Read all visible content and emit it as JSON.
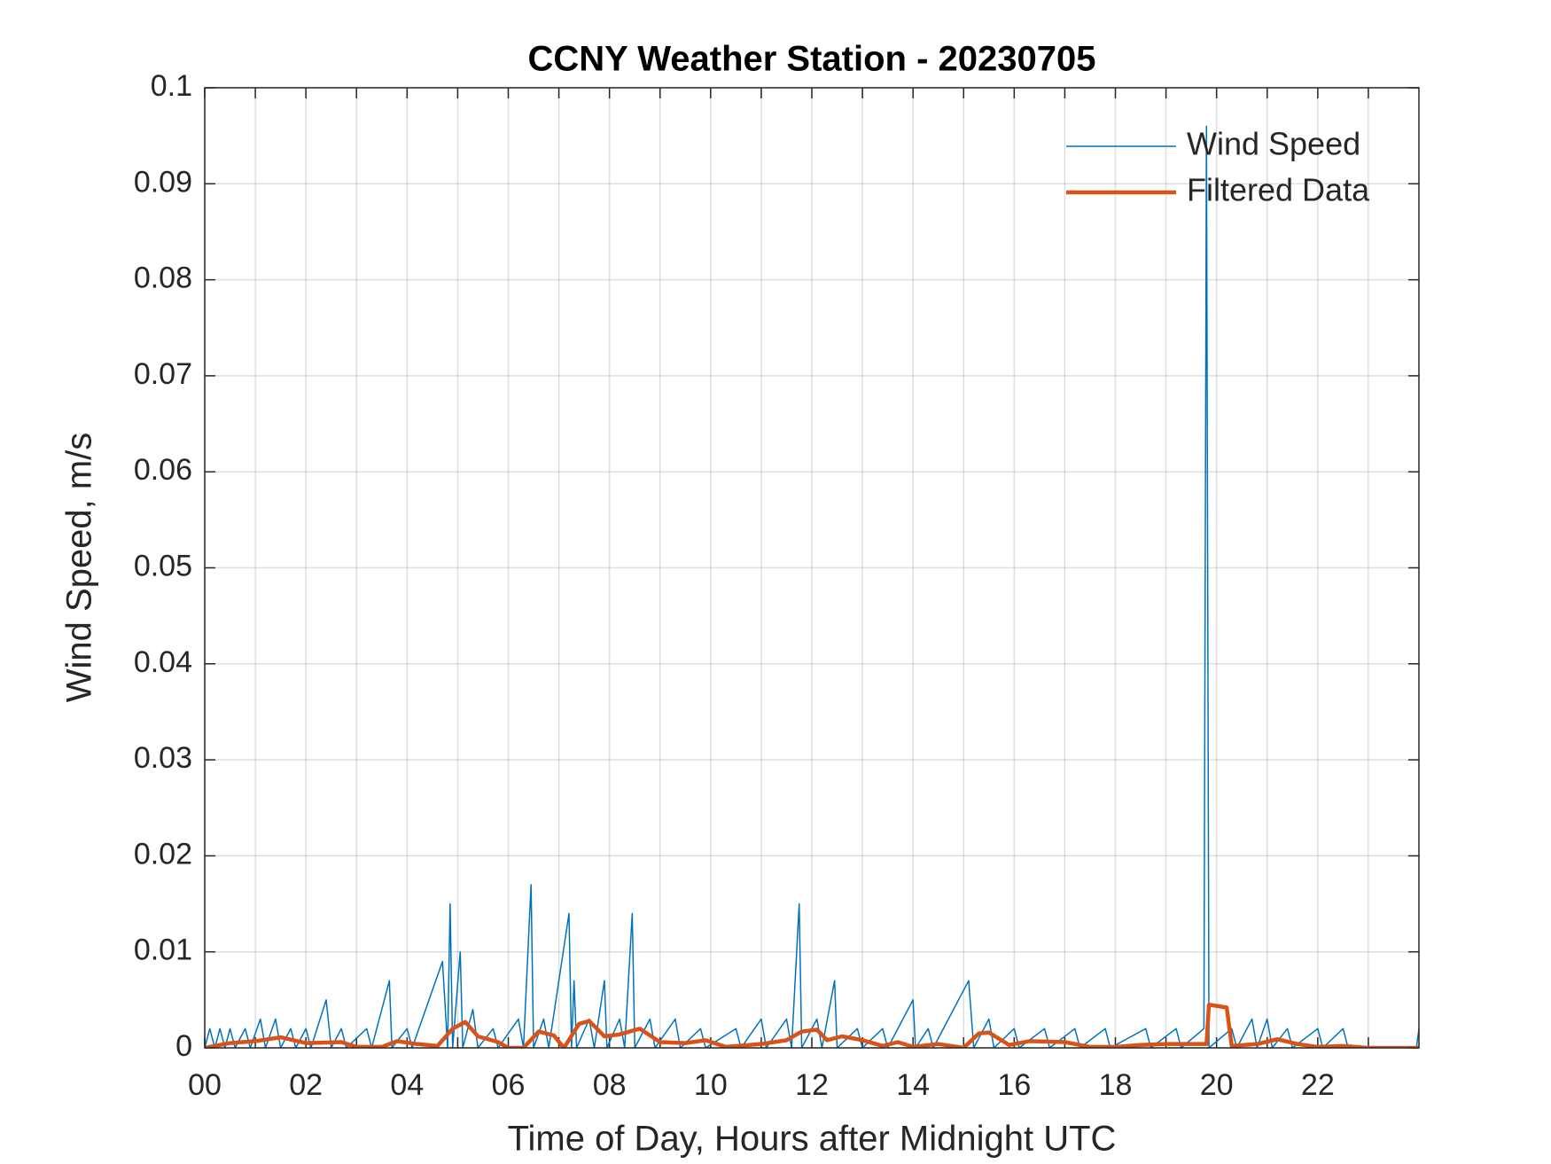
{
  "chart_data": {
    "type": "line",
    "title": "CCNY Weather Station - 20230705",
    "xlabel": "Time of Day, Hours after Midnight UTC",
    "ylabel": "Wind Speed, m/s",
    "xlim": [
      0,
      24
    ],
    "xticks": [
      {
        "value": 0,
        "label": "00"
      },
      {
        "value": 2,
        "label": "02"
      },
      {
        "value": 4,
        "label": "04"
      },
      {
        "value": 6,
        "label": "06"
      },
      {
        "value": 8,
        "label": "08"
      },
      {
        "value": 10,
        "label": "10"
      },
      {
        "value": 12,
        "label": "12"
      },
      {
        "value": 14,
        "label": "14"
      },
      {
        "value": 16,
        "label": "16"
      },
      {
        "value": 18,
        "label": "18"
      },
      {
        "value": 20,
        "label": "20"
      },
      {
        "value": 22,
        "label": "22"
      }
    ],
    "xminorticks": [
      1,
      3,
      5,
      7,
      9,
      11,
      13,
      15,
      17,
      19,
      21,
      23
    ],
    "ylim": [
      0,
      0.1
    ],
    "yticks": [
      0,
      0.01,
      0.02,
      0.03,
      0.04,
      0.05,
      0.06,
      0.07,
      0.08,
      0.09,
      0.1
    ],
    "grid": true,
    "legend": "upper right",
    "series": [
      {
        "name": "Wind Speed",
        "color": "#0072BD",
        "width": 1.5,
        "x": [
          0,
          0.1,
          0.2,
          0.3,
          0.4,
          0.5,
          0.6,
          0.8,
          0.9,
          1.1,
          1.2,
          1.4,
          1.5,
          1.7,
          1.8,
          2.0,
          2.1,
          2.4,
          2.5,
          2.7,
          2.8,
          3.2,
          3.3,
          3.65,
          3.7,
          4.0,
          4.1,
          4.7,
          4.8,
          4.85,
          4.9,
          5.05,
          5.1,
          5.3,
          5.4,
          5.7,
          5.8,
          6.2,
          6.3,
          6.45,
          6.5,
          6.7,
          6.8,
          7.2,
          7.25,
          7.3,
          7.35,
          7.6,
          7.7,
          7.9,
          7.95,
          8.2,
          8.3,
          8.45,
          8.5,
          8.8,
          8.9,
          9.3,
          9.4,
          9.8,
          9.9,
          10.5,
          10.6,
          11.0,
          11.1,
          11.5,
          11.6,
          11.75,
          11.8,
          12.1,
          12.2,
          12.45,
          12.5,
          12.9,
          13.0,
          13.4,
          13.5,
          14.0,
          14.05,
          14.3,
          14.4,
          15.1,
          15.2,
          15.5,
          15.6,
          16.0,
          16.1,
          16.6,
          16.7,
          17.2,
          17.3,
          17.8,
          17.9,
          18.6,
          18.7,
          19.2,
          19.3,
          19.75,
          19.8,
          19.85,
          20.3,
          20.4,
          20.7,
          20.8,
          21.0,
          21.1,
          21.4,
          21.5,
          22.0,
          22.1,
          22.5,
          22.6,
          23.95,
          24.0
        ],
        "values": [
          0,
          0.002,
          0,
          0.002,
          0,
          0.002,
          0,
          0.002,
          0,
          0.003,
          0,
          0.003,
          0,
          0.002,
          0,
          0.002,
          0,
          0.005,
          0,
          0.002,
          0,
          0.002,
          0,
          0.007,
          0,
          0.002,
          0,
          0.009,
          0,
          0.015,
          0,
          0.01,
          0,
          0.004,
          0,
          0.002,
          0,
          0.003,
          0,
          0.017,
          0,
          0.003,
          0,
          0.014,
          0,
          0.007,
          0,
          0.003,
          0,
          0.007,
          0,
          0.003,
          0,
          0.014,
          0,
          0.003,
          0,
          0.003,
          0,
          0.002,
          0,
          0.002,
          0,
          0.003,
          0,
          0.003,
          0,
          0.015,
          0,
          0.003,
          0,
          0.007,
          0,
          0.002,
          0,
          0.002,
          0,
          0.005,
          0,
          0.002,
          0,
          0.007,
          0,
          0.003,
          0,
          0.002,
          0,
          0.002,
          0,
          0.002,
          0,
          0.002,
          0,
          0.002,
          0,
          0.002,
          0,
          0.002,
          0.096,
          0,
          0.002,
          0,
          0.003,
          0,
          0.003,
          0,
          0.002,
          0,
          0.002,
          0,
          0.002,
          0,
          0,
          0.002
        ]
      },
      {
        "name": "Filtered Data",
        "color": "#D95319",
        "width": 4.5,
        "x": [
          0,
          0.5,
          1.0,
          1.5,
          2.0,
          2.7,
          3.0,
          3.5,
          3.8,
          4.2,
          4.6,
          4.9,
          5.15,
          5.4,
          5.8,
          6.0,
          6.3,
          6.6,
          6.9,
          7.1,
          7.4,
          7.6,
          7.9,
          8.2,
          8.6,
          9.0,
          9.5,
          9.9,
          10.3,
          11.0,
          11.5,
          11.8,
          12.1,
          12.3,
          12.6,
          13.0,
          13.4,
          13.7,
          14.0,
          14.5,
          15.0,
          15.3,
          15.5,
          15.9,
          16.3,
          17.0,
          17.5,
          18.0,
          18.5,
          19.0,
          19.8,
          19.85,
          20.2,
          20.3,
          20.8,
          21.2,
          21.6,
          22.0,
          22.5,
          23.0,
          24.0
        ],
        "values": [
          0,
          0.0005,
          0.0007,
          0.0011,
          0.0005,
          0.0006,
          0.0001,
          0.0001,
          0.0007,
          0.0004,
          0.0002,
          0.002,
          0.0027,
          0.0012,
          0.0006,
          0,
          0,
          0.0017,
          0.0013,
          0,
          0.0025,
          0.0028,
          0.0012,
          0.0014,
          0.002,
          0.0006,
          0.0005,
          0.0008,
          0.0001,
          0.0004,
          0.0008,
          0.0017,
          0.0019,
          0.0008,
          0.0012,
          0.0008,
          0.0002,
          0.0006,
          0.0001,
          0.0004,
          0,
          0.0015,
          0.0016,
          0.0003,
          0.0007,
          0.0006,
          0.0001,
          0.0001,
          0.0003,
          0.0004,
          0.0004,
          0.0045,
          0.0042,
          0.0002,
          0.0004,
          0.0009,
          0.0004,
          0.0001,
          0.0002,
          0,
          0
        ]
      }
    ]
  }
}
